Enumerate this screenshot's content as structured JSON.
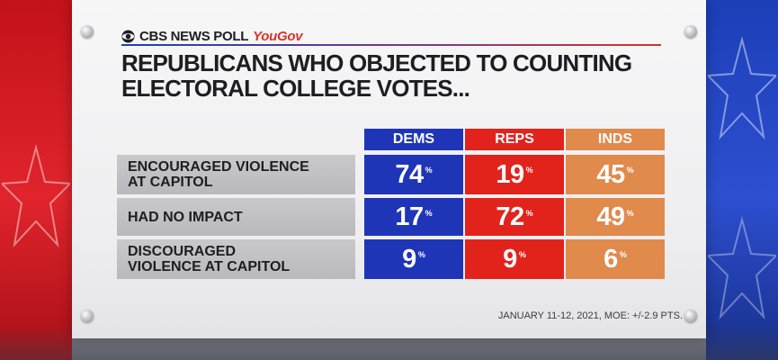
{
  "header": {
    "brand": "CBS NEWS POLL",
    "partner": "YouGov",
    "title_line1": "REPUBLICANS WHO OBJECTED TO COUNTING",
    "title_line2": "ELECTORAL COLLEGE VOTES..."
  },
  "colors": {
    "dems": "#1f35b8",
    "reps": "#e1231c",
    "inds": "#e08a4c"
  },
  "chart_data": {
    "type": "table",
    "title": "REPUBLICANS WHO OBJECTED TO COUNTING ELECTORAL COLLEGE VOTES...",
    "columns": [
      "DEMS",
      "REPS",
      "INDS"
    ],
    "unit": "%",
    "rows": [
      {
        "label_line1": "ENCOURAGED VIOLENCE",
        "label_line2": "AT CAPITOL",
        "values": [
          "74",
          "19",
          "45"
        ]
      },
      {
        "label_line1": "HAD NO IMPACT",
        "label_line2": "",
        "values": [
          "17",
          "72",
          "49"
        ]
      },
      {
        "label_line1": "DISCOURAGED",
        "label_line2": "VIOLENCE AT CAPITOL",
        "values": [
          "9",
          "9",
          "6"
        ]
      }
    ],
    "source": "JANUARY 11-12, 2021, MOE: +/-2.9 PTS."
  }
}
